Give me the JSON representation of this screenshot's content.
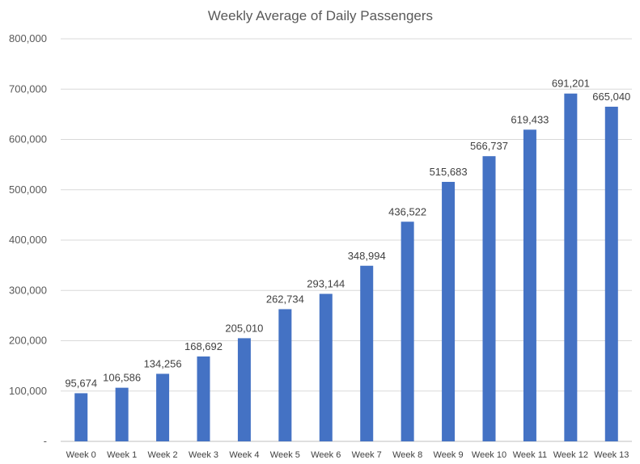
{
  "chart_data": {
    "type": "bar",
    "title": "Weekly Average of Daily Passengers",
    "xlabel": "",
    "ylabel": "",
    "categories": [
      "Week 0",
      "Week 1",
      "Week 2",
      "Week 3",
      "Week 4",
      "Week 5",
      "Week 6",
      "Week 7",
      "Week 8",
      "Week 9",
      "Week 10",
      "Week 11",
      "Week 12",
      "Week 13"
    ],
    "values": [
      95674,
      106586,
      134256,
      168692,
      205010,
      262734,
      293144,
      348994,
      436522,
      515683,
      566737,
      619433,
      691201,
      665040
    ],
    "data_labels": [
      "95,674",
      "106,586",
      "134,256",
      "168,692",
      "205,010",
      "262,734",
      "293,144",
      "348,994",
      "436,522",
      "515,683",
      "566,737",
      "619,433",
      "691,201",
      "665,040"
    ],
    "ylim": [
      0,
      800000
    ],
    "yticks": [
      0,
      100000,
      200000,
      300000,
      400000,
      500000,
      600000,
      700000,
      800000
    ],
    "ytick_labels": [
      "-",
      "100,000",
      "200,000",
      "300,000",
      "400,000",
      "500,000",
      "600,000",
      "700,000",
      "800,000"
    ],
    "grid": true,
    "legend": "none",
    "bar_color": "#4472C4"
  }
}
